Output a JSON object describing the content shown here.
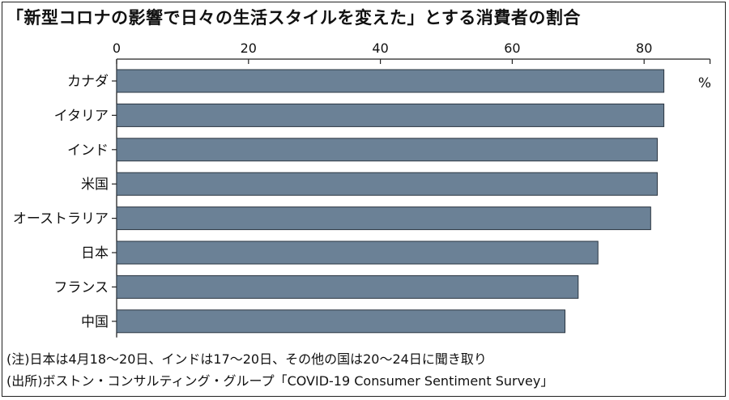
{
  "chart_data": {
    "type": "bar",
    "orientation": "horizontal",
    "title": "「新型コロナの影響で日々の生活スタイルを変えた」とする消費者の割合",
    "unit": "%",
    "categories": [
      "カナダ",
      "イタリア",
      "インド",
      "米国",
      "オーストラリア",
      "日本",
      "フランス",
      "中国"
    ],
    "values": [
      83,
      83,
      82,
      82,
      81,
      73,
      70,
      68
    ],
    "xlim": [
      0,
      90
    ],
    "xticks": [
      "0",
      "20",
      "40",
      "60",
      "80"
    ],
    "xtick_values": [
      0,
      20,
      40,
      60,
      80
    ],
    "bar_color": "#6b8196",
    "bar_edge_color": "#2a3540",
    "grid": false,
    "notes": [
      "(注)日本は4月18〜20日、インドは17〜20日、その他の国は20〜24日に聞き取り",
      "(出所)ボストン・コンサルティング・グループ「COVID-19 Consumer Sentiment Survey」"
    ]
  }
}
